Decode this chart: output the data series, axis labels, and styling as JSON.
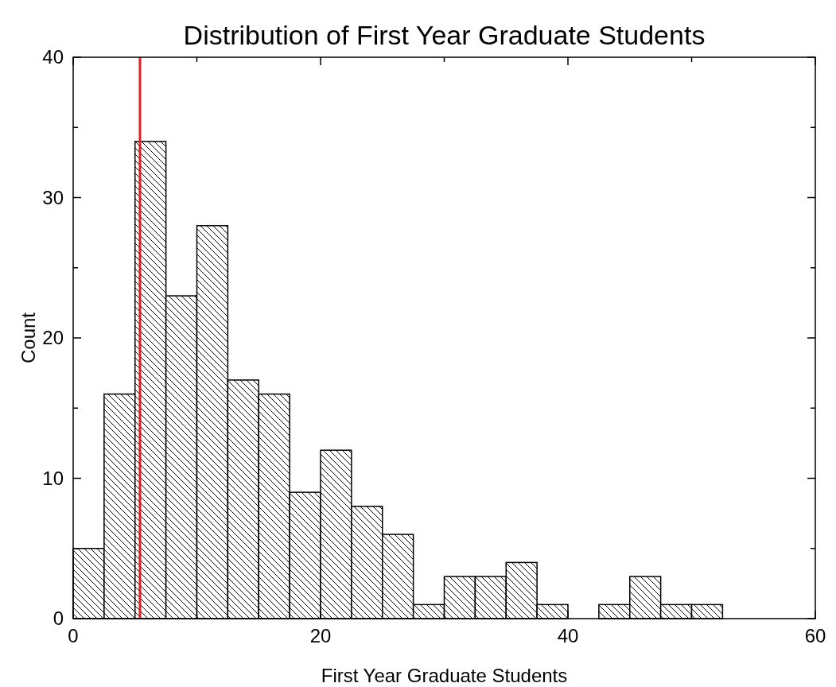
{
  "chart_data": {
    "type": "histogram",
    "title": "Distribution of First Year Graduate Students",
    "xlabel": "First Year Graduate Students",
    "ylabel": "Count",
    "bins": [
      0,
      2.5,
      5,
      7.5,
      10,
      12.5,
      15,
      17.5,
      20,
      22.5,
      25,
      27.5,
      30,
      32.5,
      35,
      37.5,
      40,
      42.5,
      45,
      47.5,
      50,
      52.5
    ],
    "values": [
      5,
      16,
      34,
      23,
      28,
      17,
      16,
      9,
      12,
      8,
      6,
      1,
      3,
      3,
      4,
      1,
      0,
      1,
      3,
      1,
      1
    ],
    "color": "#000000",
    "xlim": [
      0,
      60
    ],
    "xticks": [
      0,
      {
        "value": 10,
        "label": null
      },
      20,
      {
        "value": 30,
        "label": null
      },
      40,
      {
        "value": 50,
        "label": null
      },
      60
    ],
    "ylim": [
      0,
      40
    ],
    "yticks": [
      0,
      {
        "value": 5,
        "label": null
      },
      10,
      {
        "value": 15,
        "label": null
      },
      20,
      {
        "value": 25,
        "label": null
      },
      30,
      {
        "value": 35,
        "label": null
      },
      40
    ],
    "ref_lines": [
      {
        "axis": "x",
        "value": 5.4,
        "color": "#e02020"
      }
    ],
    "grid": false
  }
}
